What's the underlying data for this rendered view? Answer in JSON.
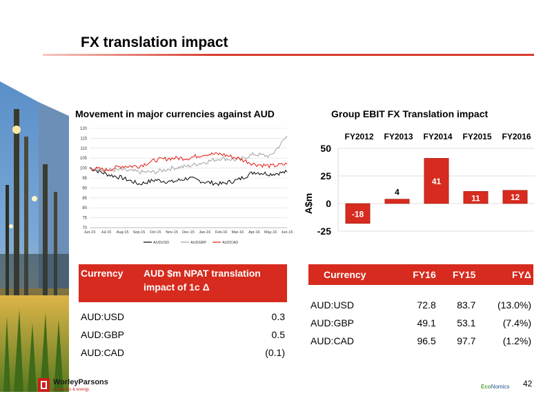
{
  "slide": {
    "title": "FX translation impact",
    "page_number": "42"
  },
  "branding": {
    "logo_name": "WorleyParsons",
    "logo_tagline": "resources & energy",
    "economics_eco": "Eco",
    "economics_nomics": "Nomics",
    "brand_red": "#d62b1e"
  },
  "chart_data": [
    {
      "type": "line",
      "title": "Movement in major currencies against AUD",
      "ylim": [
        70,
        120
      ],
      "yticks": [
        70,
        75,
        80,
        85,
        90,
        95,
        100,
        105,
        110,
        115,
        120
      ],
      "xticks": [
        "Jun-15",
        "Jul-15",
        "Aug-15",
        "Sep-15",
        "Oct-15",
        "Nov-15",
        "Dec-15",
        "Jan-16",
        "Feb-16",
        "Mar-16",
        "Apr-16",
        "May-16",
        "Jun-16"
      ],
      "grid": true,
      "legend": "bottom",
      "series": [
        {
          "name": "AUDUSD",
          "color": "#000000",
          "values": [
            100,
            97,
            95,
            92,
            94,
            93,
            95,
            93,
            92,
            94,
            98,
            97,
            98
          ]
        },
        {
          "name": "AUDGBP",
          "color": "#a0a0a0",
          "values": [
            100,
            99,
            99,
            98,
            98,
            100,
            101,
            103,
            105,
            104,
            107,
            106,
            116
          ]
        },
        {
          "name": "AUDCAD",
          "color": "#e31b12",
          "values": [
            100,
            99,
            101,
            101,
            104,
            105,
            105,
            107,
            107,
            105,
            102,
            101,
            102
          ]
        }
      ]
    },
    {
      "type": "bar",
      "title": "Group EBIT FX Translation impact",
      "categories": [
        "FY2012",
        "FY2013",
        "FY2014",
        "FY2015",
        "FY2016"
      ],
      "values": [
        -18,
        4,
        41,
        11,
        12
      ],
      "ylabel": "A$m",
      "ylim": [
        -25,
        50
      ],
      "yticks": [
        -25,
        0,
        25,
        50
      ],
      "grid": true,
      "bar_color": "#d62b1e"
    }
  ],
  "npat_table": {
    "headers": [
      "Currency",
      "AUD $m NPAT translation impact of 1c Δ"
    ],
    "rows": [
      [
        "AUD:USD",
        "0.3"
      ],
      [
        "AUD:GBP",
        "0.5"
      ],
      [
        "AUD:CAD",
        "(0.1)"
      ]
    ]
  },
  "fx_table": {
    "headers": [
      "Currency",
      "FY16",
      "FY15",
      "FYΔ"
    ],
    "rows": [
      [
        "AUD:USD",
        "72.8",
        "83.7",
        "(13.0%)"
      ],
      [
        "AUD:GBP",
        "49.1",
        "53.1",
        "(7.4%)"
      ],
      [
        "AUD:CAD",
        "96.5",
        "97.7",
        "(1.2%)"
      ]
    ]
  }
}
